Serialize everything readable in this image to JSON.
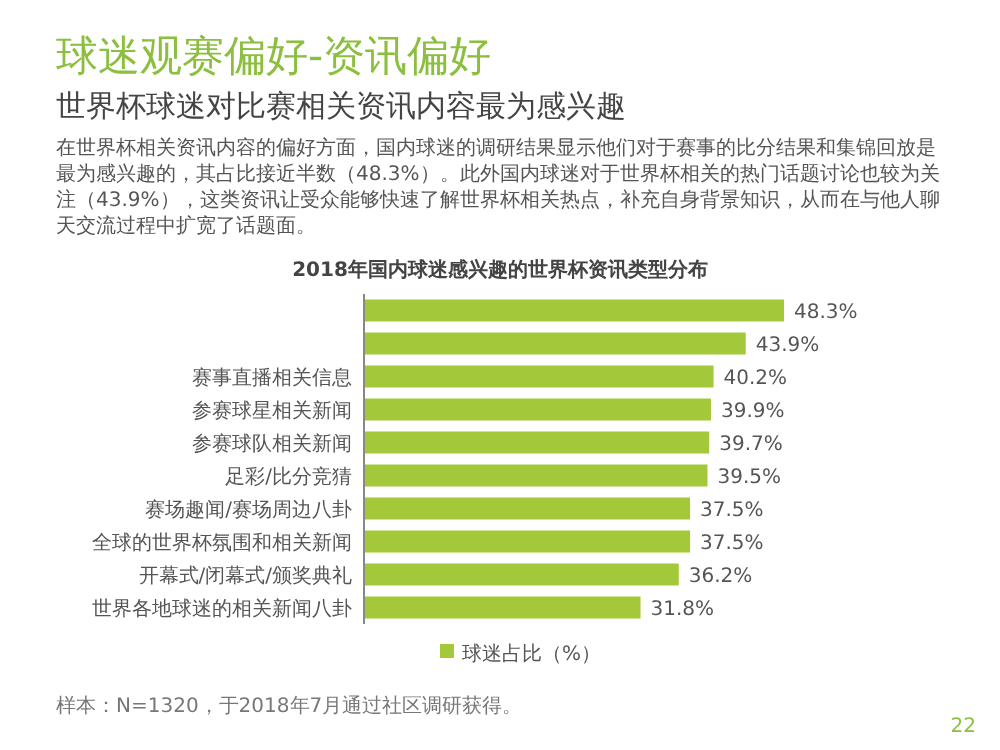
{
  "chart_data": {
    "type": "bar",
    "orientation": "horizontal",
    "title": "球迷观赛偏好-资讯偏好",
    "subtitle": "世界杯球迷对比赛相关资讯内容最为感兴趣",
    "annotations": [
      "在世界杯相关资讯内容的偏好方面，国内球迷的调研结果显示他们对于赛事的比分结果和集锦回放是最为感兴趣的，其占比接近半数（48.3%）。此外国内球迷对于世界杯相关的热门话题讨论也较为关注（43.9%），这类资讯让受众能够快速了解世界杯相关热点，补充自身背景知识，从而在与他人聊天交流过程中扩宽了话题面。",
      "2018年国内球迷感兴趣的世界杯资讯类型分布",
      "样本：N=1320，于2018年7月通过社区调研获得。",
      "22"
    ],
    "categories": [
      null,
      null,
      "赛事直播相关信息",
      "参赛球星相关新闻",
      "参赛球队相关新闻",
      "足彩/比分竞猜",
      "赛场趣闻/赛场周边八卦",
      "全球的世界杯氛围和相关新闻",
      "开幕式/闭幕式/颁奖典礼",
      "世界各地球迷的相关新闻八卦"
    ],
    "series": [
      {
        "name": "球迷占比（%）",
        "color": "#a3c93a",
        "values": [
          48.3,
          43.9,
          40.2,
          39.9,
          39.7,
          39.5,
          37.5,
          37.5,
          36.2,
          31.8
        ],
        "value_labels": [
          "48.3%",
          "43.9%",
          "40.2%",
          "39.9%",
          "39.7%",
          "39.5%",
          "37.5%",
          "37.5%",
          "36.2%",
          "31.8%"
        ]
      }
    ],
    "legend": "bottom"
  }
}
